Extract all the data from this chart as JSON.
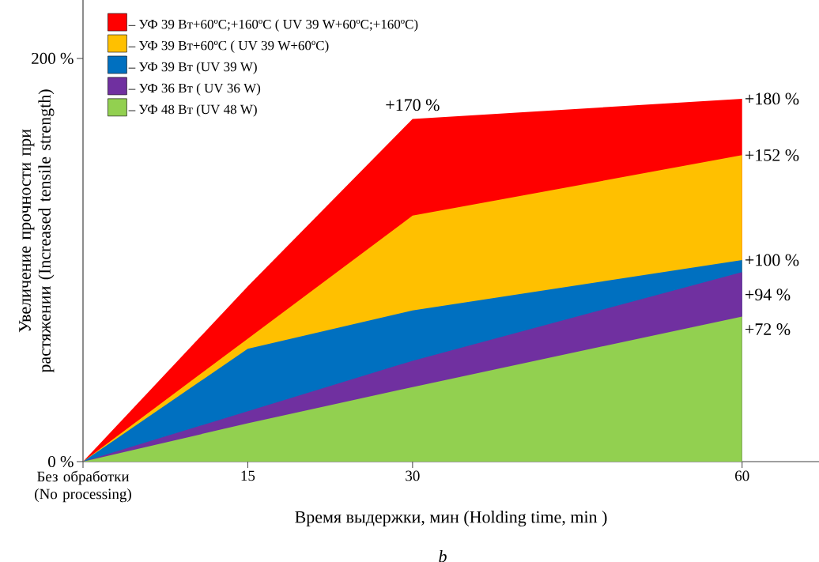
{
  "chart_data": {
    "type": "area",
    "xlabel": "Время выдержки, мин  (Holding time, min )",
    "ylabel": "Увеличение прочности при растяжении (Increased tensile strength)",
    "x": [
      0,
      15,
      30,
      60
    ],
    "xlim": [
      0,
      67
    ],
    "ylim": [
      0,
      229
    ],
    "xticks": [
      {
        "value": 0,
        "label": "Без обработки (No processing)"
      },
      15,
      30,
      60
    ],
    "yticks": [
      {
        "value": 0,
        "label": "0 %"
      },
      {
        "value": 200,
        "label": "200 %"
      }
    ],
    "legend": "top left",
    "grid": false,
    "annotations": [
      "b"
    ],
    "series": [
      {
        "name": "– УФ 39 Вт+60ºC;+160ºC ( UV 39 W+60ºC;+160ºC)",
        "color": "#ff0000",
        "values": [
          0,
          87,
          170,
          180
        ],
        "value_labels": [
          null,
          null,
          "+170 %",
          "+180 %"
        ]
      },
      {
        "name": "– УФ 39 Вт+60ºC ( UV 39 W+60ºC)",
        "color": "#ffc000",
        "values": [
          0,
          61,
          122,
          152
        ],
        "value_labels": [
          null,
          null,
          null,
          "+152 %"
        ]
      },
      {
        "name": "– УФ 39 Вт (UV 39 W)",
        "color": "#0070c0",
        "values": [
          0,
          56,
          75,
          100
        ],
        "value_labels": [
          null,
          null,
          null,
          "+100 %"
        ]
      },
      {
        "name": "– УФ 36 Вт ( UV 36 W)",
        "color": "#7030a0",
        "values": [
          0,
          25,
          50,
          94
        ],
        "value_labels": [
          null,
          null,
          null,
          "+94 %"
        ]
      },
      {
        "name": "– УФ 48 Вт (UV 48 W)",
        "color": "#92d050",
        "values": [
          0,
          19,
          37,
          72
        ],
        "value_labels": [
          null,
          null,
          null,
          "+72 %"
        ]
      }
    ]
  }
}
